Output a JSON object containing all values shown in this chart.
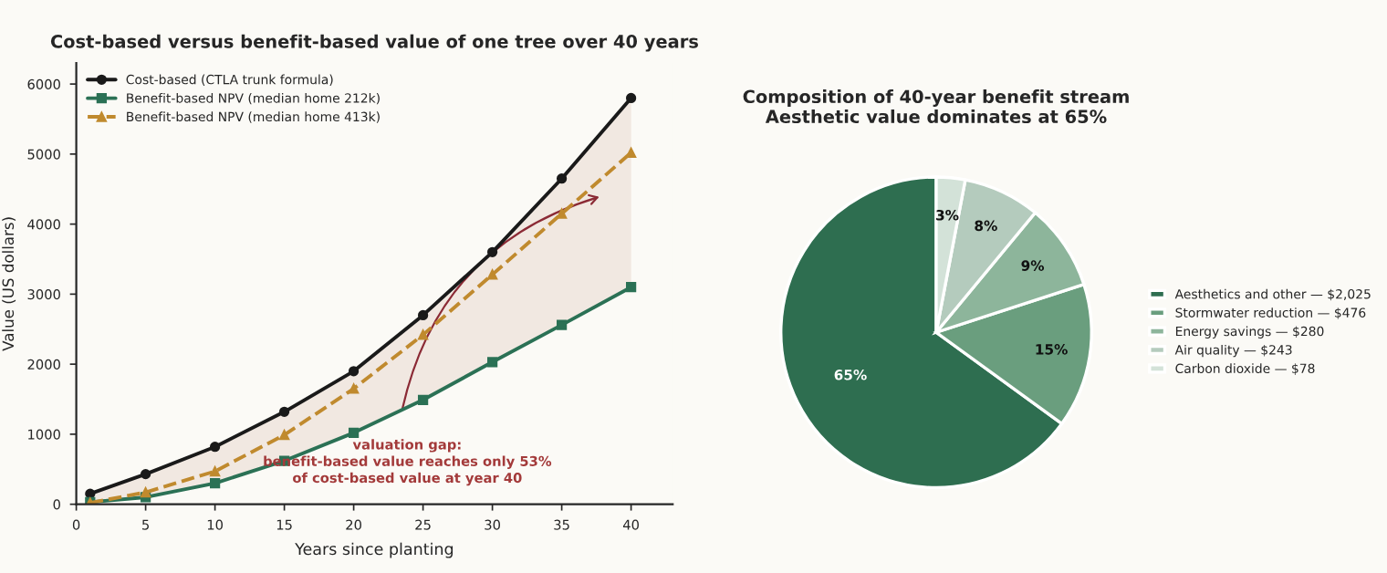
{
  "chart_data": [
    {
      "type": "line",
      "title": "Cost-based versus benefit-based value of one tree over 40 years",
      "xlabel": "Years since planting",
      "ylabel": "Value (US dollars)",
      "x": [
        1,
        5,
        10,
        15,
        20,
        25,
        30,
        35,
        40
      ],
      "series": [
        {
          "name": "Cost-based (CTLA trunk formula)",
          "color": "#1a1a1a",
          "marker": "circle",
          "line_style": "solid",
          "values": [
            150,
            430,
            820,
            1320,
            1900,
            2700,
            3600,
            4650,
            5800
          ],
          "lower": [
            30,
            100,
            300,
            620,
            1020,
            1490,
            2030,
            2560,
            3100
          ],
          "upper": [
            150,
            430,
            820,
            1320,
            1900,
            2700,
            3600,
            4650,
            5800
          ]
        },
        {
          "name": "Benefit-based NPV (median home 212k)",
          "color": "#2b7155",
          "marker": "square",
          "line_style": "solid",
          "values": [
            30,
            100,
            300,
            620,
            1020,
            1490,
            2030,
            2560,
            3100
          ]
        },
        {
          "name": "Benefit-based NPV (median home 413k)",
          "color": "#c08a2e",
          "marker": "triangle",
          "line_style": "dashed",
          "values": [
            20,
            170,
            470,
            990,
            1650,
            2420,
            3280,
            4150,
            5020
          ]
        }
      ],
      "xlim": [
        0,
        43
      ],
      "xticks": [
        0,
        5,
        10,
        15,
        20,
        25,
        30,
        35,
        40
      ],
      "ylim": [
        0,
        6300
      ],
      "yticks": [
        0,
        1000,
        2000,
        3000,
        4000,
        5000,
        6000
      ],
      "grid": false,
      "legend": "top left",
      "annotations": [
        "valuation gap:\nbenefit-based value reaches only 53%\nof cost-based value at year 40"
      ]
    },
    {
      "type": "pie",
      "title": "Composition of 40-year benefit stream\nAesthetic value dominates at 65%",
      "categories": [
        "Aesthetics and other — $2,025",
        "Stormwater reduction — $476",
        "Energy savings — $280",
        "Air quality — $243",
        "Carbon dioxide — $78"
      ],
      "values": [
        65,
        15,
        9,
        8,
        3
      ],
      "value_labels": [
        "65%",
        "15%",
        "9%",
        "8%",
        "3%"
      ],
      "colors": [
        "#2e6e50",
        "#6a9e7e",
        "#8db59b",
        "#b4cbbd",
        "#d3e2d8"
      ],
      "legend": "right"
    }
  ]
}
